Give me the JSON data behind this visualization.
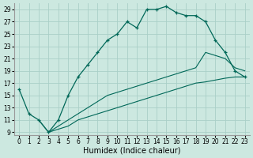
{
  "xlabel": "Humidex (Indice chaleur)",
  "bg_color": "#cce8e0",
  "grid_color": "#aacfc8",
  "line_color": "#006858",
  "xlim": [
    -0.5,
    23.5
  ],
  "ylim": [
    8.5,
    30
  ],
  "xticks": [
    0,
    1,
    2,
    3,
    4,
    5,
    6,
    7,
    8,
    9,
    10,
    11,
    12,
    13,
    14,
    15,
    16,
    17,
    18,
    19,
    20,
    21,
    22,
    23
  ],
  "yticks": [
    9,
    11,
    13,
    15,
    17,
    19,
    21,
    23,
    25,
    27,
    29
  ],
  "curve_x": [
    0,
    1,
    2,
    3,
    4,
    5,
    6,
    7,
    8,
    9,
    10,
    11,
    12,
    13,
    14,
    15,
    16,
    17,
    18,
    19,
    20,
    21,
    22,
    23
  ],
  "curve_y": [
    16,
    12,
    11,
    9,
    11,
    15,
    18,
    20,
    22,
    24,
    25,
    27,
    26,
    29,
    29,
    29.5,
    28.5,
    28,
    28,
    27,
    24,
    22,
    19,
    18
  ],
  "mid_x": [
    2,
    3,
    4,
    5,
    6,
    7,
    8,
    9,
    10,
    11,
    12,
    13,
    14,
    15,
    16,
    17,
    18,
    19,
    20,
    21,
    22,
    23
  ],
  "mid_y": [
    11,
    9,
    10,
    11,
    12,
    13,
    14,
    15,
    15.5,
    16,
    16.5,
    17,
    17.5,
    18,
    18.5,
    19,
    19.5,
    22,
    21.5,
    21,
    19.5,
    19
  ],
  "bot_x": [
    3,
    4,
    5,
    6,
    7,
    8,
    9,
    10,
    11,
    12,
    13,
    14,
    15,
    16,
    17,
    18,
    19,
    20,
    21,
    22,
    23
  ],
  "bot_y": [
    9,
    9.5,
    10,
    11,
    11.5,
    12,
    12.5,
    13,
    13.5,
    14,
    14.5,
    15,
    15.5,
    16,
    16.5,
    17,
    17.2,
    17.5,
    17.8,
    18,
    18
  ],
  "xlabel_fontsize": 7,
  "tick_fontsize": 5.5
}
